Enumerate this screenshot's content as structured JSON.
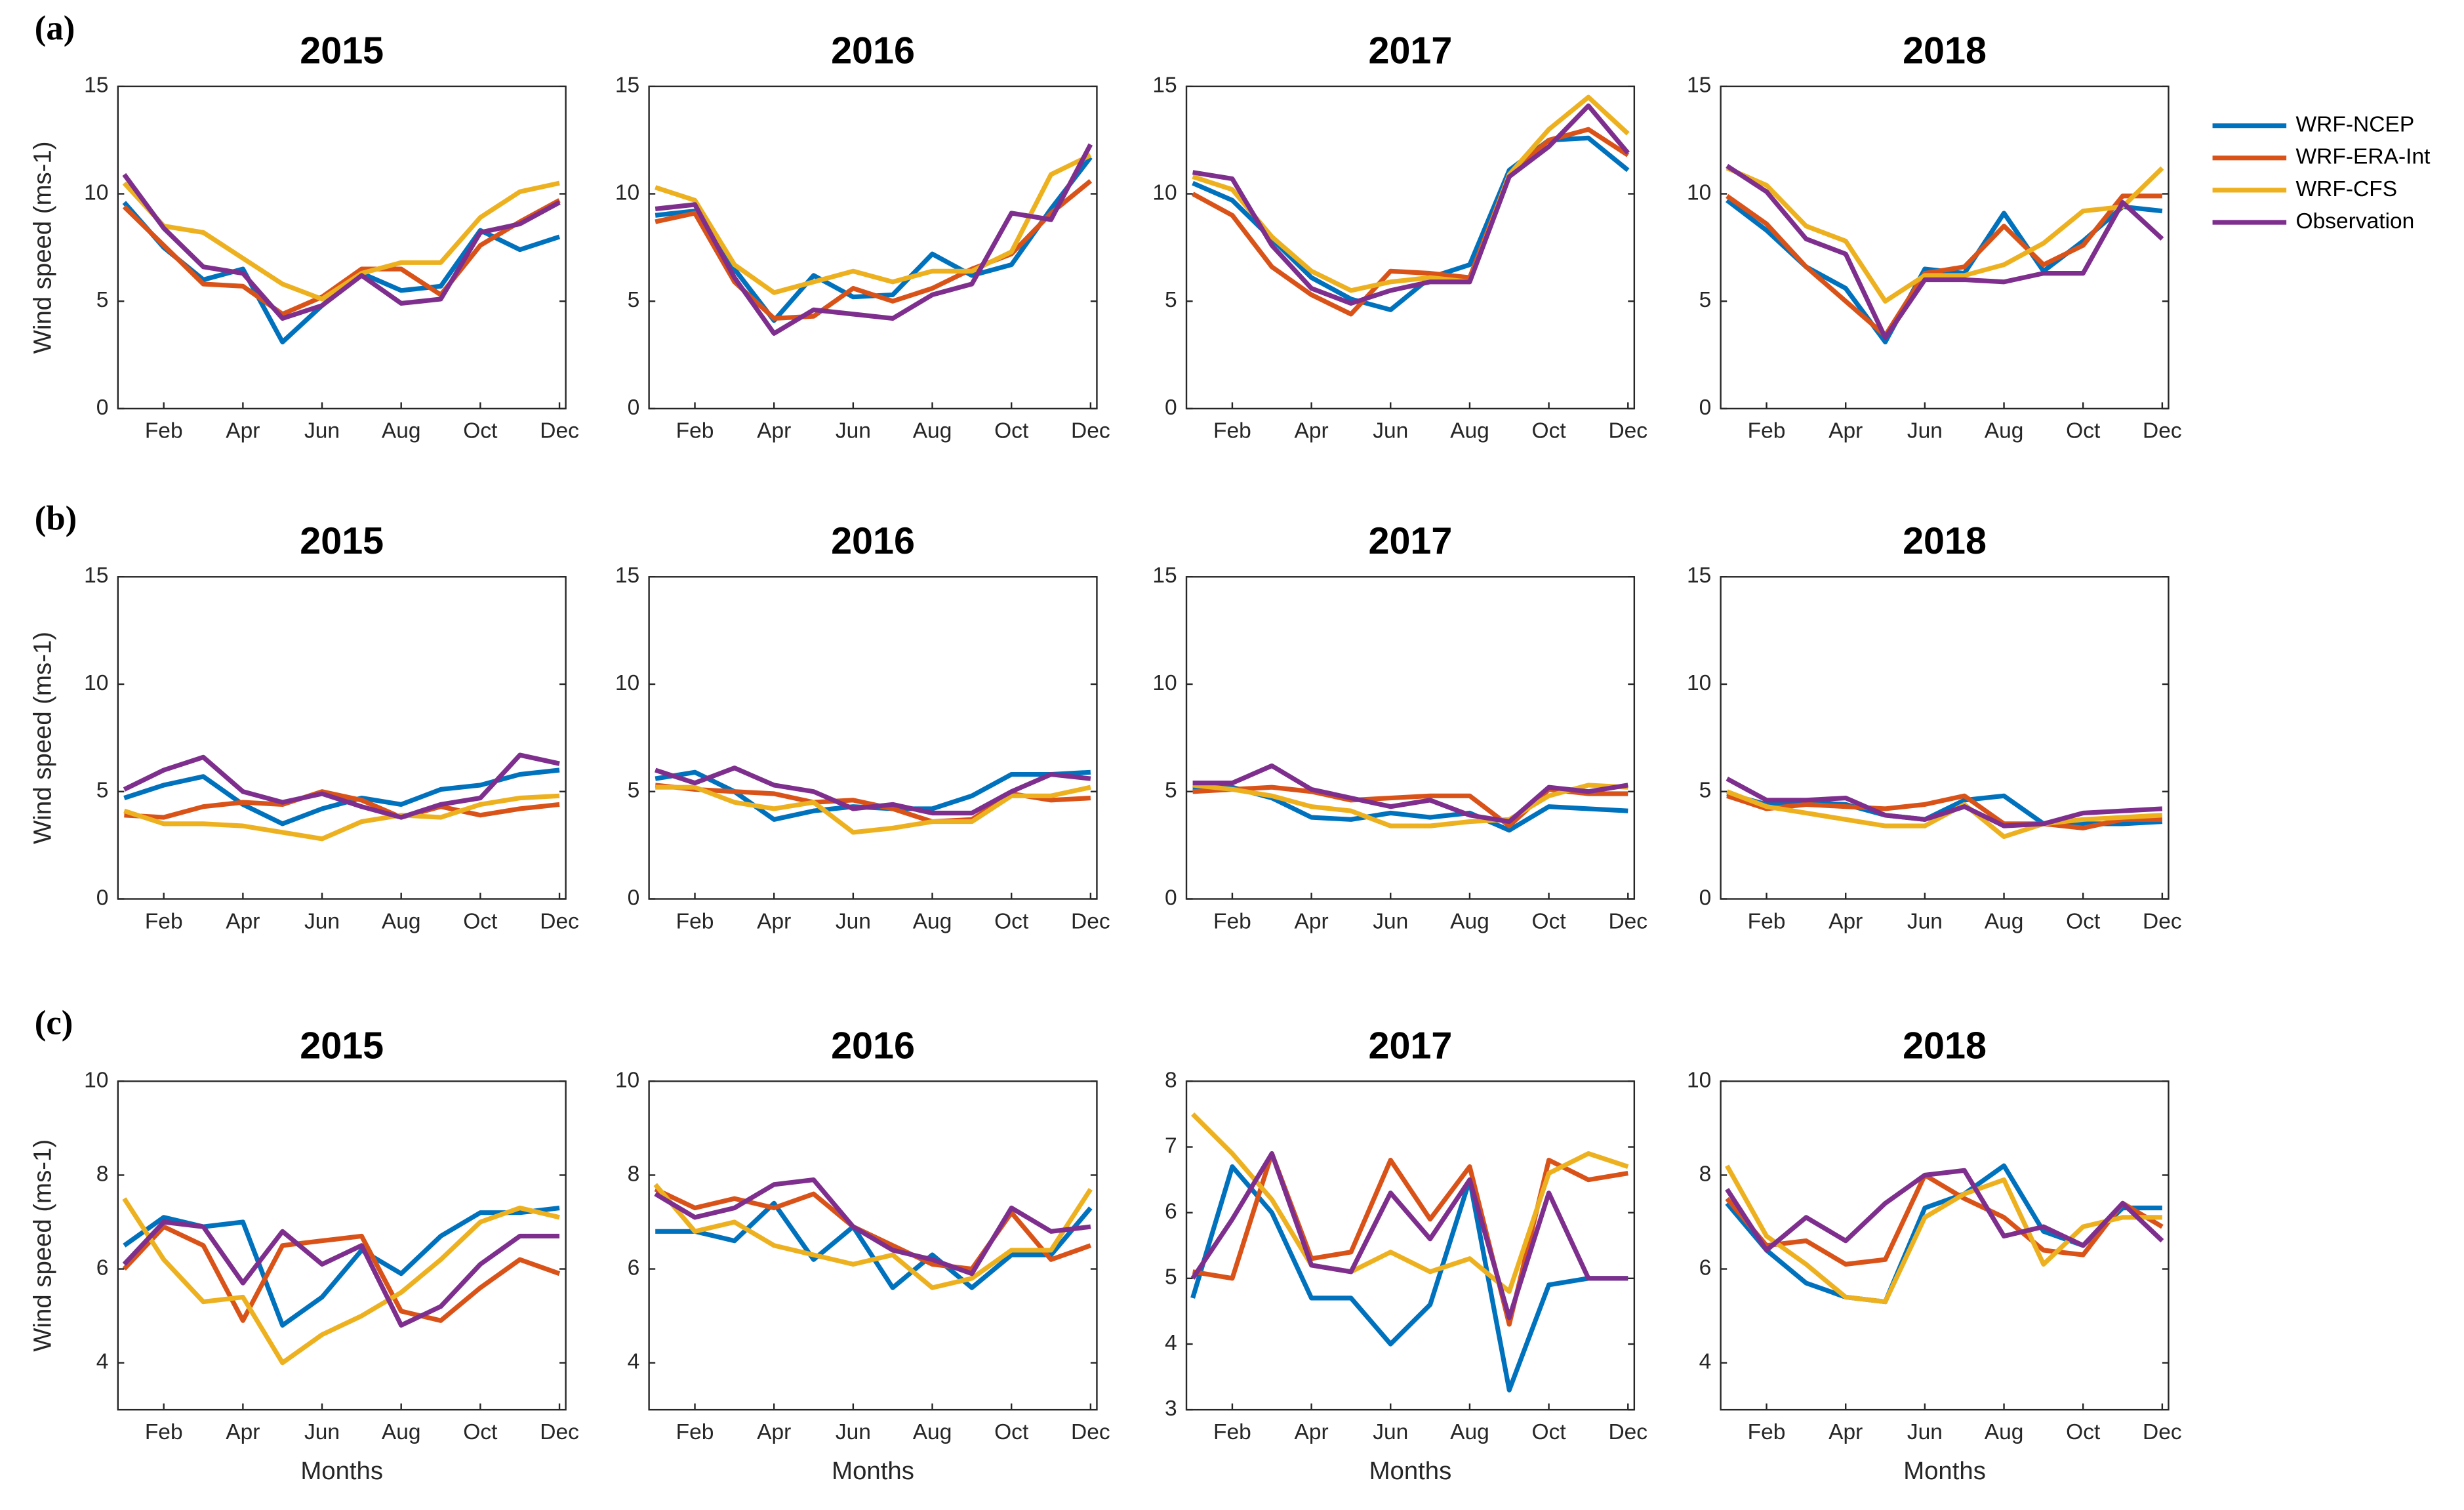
{
  "legend": [
    {
      "name": "WRF-NCEP",
      "color": "#0072BD"
    },
    {
      "name": "WRF-ERA-Int",
      "color": "#D95319"
    },
    {
      "name": "WRF-CFS",
      "color": "#EDB120"
    },
    {
      "name": "Observation",
      "color": "#7E2F8E"
    }
  ],
  "chart_data": [
    {
      "type": "line",
      "panel_label": "(a)",
      "title": "2015",
      "ylabel": "Wind speed (ms-1)",
      "categories": [
        null,
        "Feb",
        null,
        "Apr",
        null,
        "Jun",
        null,
        "Aug",
        null,
        "Oct",
        null,
        "Dec"
      ],
      "ylim": [
        0,
        15
      ],
      "yticks": [
        0,
        5,
        10,
        15
      ],
      "series": [
        {
          "values": [
            9.6,
            7.5,
            6.0,
            6.5,
            3.1,
            4.8,
            6.3,
            5.5,
            5.7,
            8.3,
            7.4,
            8.0
          ]
        },
        {
          "values": [
            9.4,
            7.6,
            5.8,
            5.7,
            4.4,
            5.2,
            6.5,
            6.5,
            5.3,
            7.6,
            8.7,
            9.7
          ]
        },
        {
          "values": [
            10.5,
            8.5,
            8.2,
            7.0,
            5.8,
            5.1,
            6.3,
            6.8,
            6.8,
            8.9,
            10.1,
            10.5
          ]
        },
        {
          "values": [
            10.9,
            8.4,
            6.6,
            6.3,
            4.2,
            4.8,
            6.2,
            4.9,
            5.1,
            8.2,
            8.6,
            9.6
          ]
        }
      ]
    },
    {
      "type": "line",
      "title": "2016",
      "categories": [
        null,
        "Feb",
        null,
        "Apr",
        null,
        "Jun",
        null,
        "Aug",
        null,
        "Oct",
        null,
        "Dec"
      ],
      "ylim": [
        0,
        15
      ],
      "yticks": [
        0,
        5,
        10,
        15
      ],
      "series": [
        {
          "values": [
            9.0,
            9.2,
            6.5,
            4.1,
            6.2,
            5.2,
            5.3,
            7.2,
            6.2,
            6.7,
            9.3,
            11.7
          ]
        },
        {
          "values": [
            8.7,
            9.1,
            5.9,
            4.2,
            4.3,
            5.6,
            5.0,
            5.6,
            6.5,
            7.2,
            9.1,
            10.6
          ]
        },
        {
          "values": [
            10.3,
            9.7,
            6.7,
            5.4,
            5.9,
            6.4,
            5.9,
            6.4,
            6.4,
            7.3,
            10.9,
            11.8
          ]
        },
        {
          "values": [
            9.3,
            9.5,
            6.1,
            3.5,
            4.6,
            4.4,
            4.2,
            5.3,
            5.8,
            9.1,
            8.8,
            12.3
          ]
        }
      ]
    },
    {
      "type": "line",
      "title": "2017",
      "categories": [
        null,
        "Feb",
        null,
        "Apr",
        null,
        "Jun",
        null,
        "Aug",
        null,
        "Oct",
        null,
        "Dec"
      ],
      "ylim": [
        0,
        15
      ],
      "yticks": [
        0,
        5,
        10,
        15
      ],
      "series": [
        {
          "values": [
            10.5,
            9.7,
            7.9,
            6.1,
            5.1,
            4.6,
            6.1,
            6.7,
            11.1,
            12.5,
            12.6,
            11.1
          ]
        },
        {
          "values": [
            10.0,
            9.0,
            6.6,
            5.3,
            4.4,
            6.4,
            6.3,
            6.1,
            10.9,
            12.5,
            13.0,
            11.8
          ]
        },
        {
          "values": [
            10.8,
            10.2,
            8.0,
            6.4,
            5.5,
            5.9,
            6.1,
            5.9,
            10.9,
            13.0,
            14.5,
            12.8
          ]
        },
        {
          "values": [
            11.0,
            10.7,
            7.6,
            5.6,
            4.9,
            5.5,
            5.9,
            5.9,
            10.8,
            12.2,
            14.1,
            11.9
          ]
        }
      ]
    },
    {
      "type": "line",
      "title": "2018",
      "categories": [
        null,
        "Feb",
        null,
        "Apr",
        null,
        "Jun",
        null,
        "Aug",
        null,
        "Oct",
        null,
        "Dec"
      ],
      "ylim": [
        0,
        15
      ],
      "yticks": [
        0,
        5,
        10,
        15
      ],
      "series": [
        {
          "values": [
            9.7,
            8.3,
            6.6,
            5.6,
            3.1,
            6.5,
            6.3,
            9.1,
            6.4,
            7.8,
            9.4,
            9.2
          ]
        },
        {
          "values": [
            9.9,
            8.6,
            6.6,
            5.0,
            3.4,
            6.3,
            6.6,
            8.5,
            6.7,
            7.6,
            9.9,
            9.9
          ]
        },
        {
          "values": [
            11.2,
            10.4,
            8.5,
            7.8,
            5.0,
            6.2,
            6.2,
            6.7,
            7.7,
            9.2,
            9.4,
            11.2
          ]
        },
        {
          "values": [
            11.3,
            10.1,
            7.9,
            7.2,
            3.3,
            6.0,
            6.0,
            5.9,
            6.3,
            6.3,
            9.6,
            7.9
          ]
        }
      ]
    },
    {
      "type": "line",
      "panel_label": "(b)",
      "title": "2015",
      "ylabel": "Wind speed (ms-1)",
      "categories": [
        null,
        "Feb",
        null,
        "Apr",
        null,
        "Jun",
        null,
        "Aug",
        null,
        "Oct",
        null,
        "Dec"
      ],
      "ylim": [
        0,
        15
      ],
      "yticks": [
        0,
        5,
        10,
        15
      ],
      "series": [
        {
          "values": [
            4.7,
            5.3,
            5.7,
            4.4,
            3.5,
            4.2,
            4.7,
            4.4,
            5.1,
            5.3,
            5.8,
            6.0
          ]
        },
        {
          "values": [
            3.9,
            3.8,
            4.3,
            4.5,
            4.4,
            5.0,
            4.6,
            3.8,
            4.3,
            3.9,
            4.2,
            4.4
          ]
        },
        {
          "values": [
            4.1,
            3.5,
            3.5,
            3.4,
            3.1,
            2.8,
            3.6,
            3.9,
            3.8,
            4.4,
            4.7,
            4.8
          ]
        },
        {
          "values": [
            5.1,
            6.0,
            6.6,
            5.0,
            4.5,
            4.9,
            4.3,
            3.8,
            4.4,
            4.7,
            6.7,
            6.3
          ]
        }
      ]
    },
    {
      "type": "line",
      "title": "2016",
      "categories": [
        null,
        "Feb",
        null,
        "Apr",
        null,
        "Jun",
        null,
        "Aug",
        null,
        "Oct",
        null,
        "Dec"
      ],
      "ylim": [
        0,
        15
      ],
      "yticks": [
        0,
        5,
        10,
        15
      ],
      "series": [
        {
          "values": [
            5.6,
            5.9,
            5.0,
            3.7,
            4.1,
            4.3,
            4.2,
            4.2,
            4.8,
            5.8,
            5.8,
            5.9
          ]
        },
        {
          "values": [
            5.3,
            5.1,
            5.0,
            4.9,
            4.5,
            4.6,
            4.2,
            3.6,
            3.7,
            4.9,
            4.6,
            4.7
          ]
        },
        {
          "values": [
            5.2,
            5.2,
            4.5,
            4.2,
            4.5,
            3.1,
            3.3,
            3.6,
            3.6,
            4.8,
            4.8,
            5.2
          ]
        },
        {
          "values": [
            6.0,
            5.4,
            6.1,
            5.3,
            5.0,
            4.2,
            4.4,
            4.0,
            4.0,
            5.0,
            5.8,
            5.6
          ]
        }
      ]
    },
    {
      "type": "line",
      "title": "2017",
      "categories": [
        null,
        "Feb",
        null,
        "Apr",
        null,
        "Jun",
        null,
        "Aug",
        null,
        "Oct",
        null,
        "Dec"
      ],
      "ylim": [
        0,
        15
      ],
      "yticks": [
        0,
        5,
        10,
        15
      ],
      "series": [
        {
          "values": [
            5.2,
            5.2,
            4.7,
            3.8,
            3.7,
            4.0,
            3.8,
            4.0,
            3.2,
            4.3,
            4.2,
            4.1
          ]
        },
        {
          "values": [
            5.0,
            5.1,
            5.2,
            5.0,
            4.6,
            4.7,
            4.8,
            4.8,
            3.4,
            5.1,
            4.9,
            4.9
          ]
        },
        {
          "values": [
            5.3,
            5.1,
            4.8,
            4.3,
            4.1,
            3.4,
            3.4,
            3.6,
            3.7,
            4.8,
            5.3,
            5.2
          ]
        },
        {
          "values": [
            5.4,
            5.4,
            6.2,
            5.1,
            4.7,
            4.3,
            4.6,
            3.9,
            3.6,
            5.2,
            5.0,
            5.3
          ]
        }
      ]
    },
    {
      "type": "line",
      "title": "2018",
      "categories": [
        null,
        "Feb",
        null,
        "Apr",
        null,
        "Jun",
        null,
        "Aug",
        null,
        "Oct",
        null,
        "Dec"
      ],
      "ylim": [
        0,
        15
      ],
      "yticks": [
        0,
        5,
        10,
        15
      ],
      "series": [
        {
          "values": [
            4.9,
            4.4,
            4.5,
            4.4,
            3.9,
            3.7,
            4.6,
            4.8,
            3.5,
            3.5,
            3.5,
            3.6
          ]
        },
        {
          "values": [
            4.8,
            4.2,
            4.4,
            4.3,
            4.2,
            4.4,
            4.8,
            3.5,
            3.5,
            3.3,
            3.7,
            3.7
          ]
        },
        {
          "values": [
            5.0,
            4.3,
            4.0,
            3.7,
            3.4,
            3.4,
            4.4,
            2.9,
            3.5,
            3.7,
            3.8,
            3.9
          ]
        },
        {
          "values": [
            5.6,
            4.6,
            4.6,
            4.7,
            3.9,
            3.7,
            4.3,
            3.4,
            3.5,
            4.0,
            4.1,
            4.2
          ]
        }
      ]
    },
    {
      "type": "line",
      "panel_label": "(c)",
      "title": "2015",
      "ylabel": "Wind speed (ms-1)",
      "xlabel": "Months",
      "categories": [
        null,
        "Feb",
        null,
        "Apr",
        null,
        "Jun",
        null,
        "Aug",
        null,
        "Oct",
        null,
        "Dec"
      ],
      "ylim": [
        3,
        10
      ],
      "yticks": [
        4,
        6,
        8,
        10
      ],
      "series": [
        {
          "values": [
            6.5,
            7.1,
            6.9,
            7.0,
            4.8,
            5.4,
            6.4,
            5.9,
            6.7,
            7.2,
            7.2,
            7.3
          ]
        },
        {
          "values": [
            6.0,
            6.9,
            6.5,
            4.9,
            6.5,
            6.6,
            6.7,
            5.1,
            4.9,
            5.6,
            6.2,
            5.9
          ]
        },
        {
          "values": [
            7.5,
            6.2,
            5.3,
            5.4,
            4.0,
            4.6,
            5.0,
            5.5,
            6.2,
            7.0,
            7.3,
            7.1
          ]
        },
        {
          "values": [
            6.1,
            7.0,
            6.9,
            5.7,
            6.8,
            6.1,
            6.5,
            4.8,
            5.2,
            6.1,
            6.7,
            6.7
          ]
        }
      ]
    },
    {
      "type": "line",
      "title": "2016",
      "xlabel": "Months",
      "categories": [
        null,
        "Feb",
        null,
        "Apr",
        null,
        "Jun",
        null,
        "Aug",
        null,
        "Oct",
        null,
        "Dec"
      ],
      "ylim": [
        3,
        10
      ],
      "yticks": [
        4,
        6,
        8,
        10
      ],
      "series": [
        {
          "values": [
            6.8,
            6.8,
            6.6,
            7.4,
            6.2,
            6.9,
            5.6,
            6.3,
            5.6,
            6.3,
            6.3,
            7.3
          ]
        },
        {
          "values": [
            7.7,
            7.3,
            7.5,
            7.3,
            7.6,
            6.9,
            6.5,
            6.1,
            6.0,
            7.2,
            6.2,
            6.5
          ]
        },
        {
          "values": [
            7.8,
            6.8,
            7.0,
            6.5,
            6.3,
            6.1,
            6.3,
            5.6,
            5.8,
            6.4,
            6.4,
            7.7
          ]
        },
        {
          "values": [
            7.6,
            7.1,
            7.3,
            7.8,
            7.9,
            6.9,
            6.4,
            6.2,
            5.9,
            7.3,
            6.8,
            6.9
          ]
        }
      ]
    },
    {
      "type": "line",
      "title": "2017",
      "xlabel": "Months",
      "categories": [
        null,
        "Feb",
        null,
        "Apr",
        null,
        "Jun",
        null,
        "Aug",
        null,
        "Oct",
        null,
        "Dec"
      ],
      "ylim": [
        3,
        8
      ],
      "yticks": [
        3,
        4,
        5,
        6,
        7,
        8
      ],
      "series": [
        {
          "values": [
            4.7,
            6.7,
            6.0,
            4.7,
            4.7,
            4.0,
            4.6,
            6.5,
            3.3,
            4.9,
            5.0,
            5.0
          ]
        },
        {
          "values": [
            5.1,
            5.0,
            6.9,
            5.3,
            5.4,
            6.8,
            5.9,
            6.7,
            4.3,
            6.8,
            6.5,
            6.6
          ]
        },
        {
          "values": [
            7.5,
            6.9,
            6.2,
            5.2,
            5.1,
            5.4,
            5.1,
            5.3,
            4.8,
            6.6,
            6.9,
            6.7
          ]
        },
        {
          "values": [
            5.0,
            5.9,
            6.9,
            5.2,
            5.1,
            6.3,
            5.6,
            6.5,
            4.4,
            6.3,
            5.0,
            5.0
          ]
        }
      ]
    },
    {
      "type": "line",
      "title": "2018",
      "xlabel": "Months",
      "categories": [
        null,
        "Feb",
        null,
        "Apr",
        null,
        "Jun",
        null,
        "Aug",
        null,
        "Oct",
        null,
        "Dec"
      ],
      "ylim": [
        3,
        10
      ],
      "yticks": [
        4,
        6,
        8,
        10
      ],
      "series": [
        {
          "values": [
            7.4,
            6.4,
            5.7,
            5.4,
            5.3,
            7.3,
            7.6,
            8.2,
            6.8,
            6.5,
            7.3,
            7.3
          ]
        },
        {
          "values": [
            7.5,
            6.5,
            6.6,
            6.1,
            6.2,
            8.0,
            7.5,
            7.1,
            6.4,
            6.3,
            7.4,
            6.9
          ]
        },
        {
          "values": [
            8.2,
            6.7,
            6.1,
            5.4,
            5.3,
            7.1,
            7.6,
            7.9,
            6.1,
            6.9,
            7.1,
            7.1
          ]
        },
        {
          "values": [
            7.7,
            6.4,
            7.1,
            6.6,
            7.4,
            8.0,
            8.1,
            6.7,
            6.9,
            6.5,
            7.4,
            6.6
          ]
        }
      ]
    }
  ]
}
